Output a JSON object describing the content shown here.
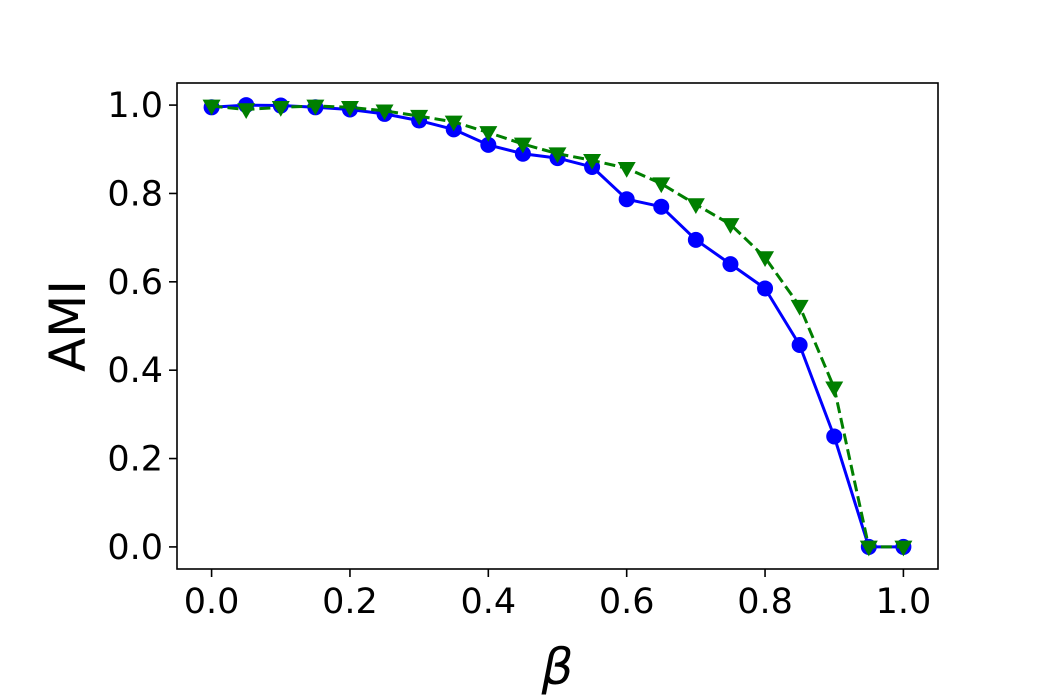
{
  "chart_data": {
    "type": "line",
    "title": "",
    "xlabel": "β",
    "ylabel": "AMI",
    "xlim": [
      -0.05,
      1.05
    ],
    "ylim": [
      -0.05,
      1.05
    ],
    "xticks": [
      0.0,
      0.2,
      0.4,
      0.6,
      0.8,
      1.0
    ],
    "yticks": [
      0.0,
      0.2,
      0.4,
      0.6,
      0.8,
      1.0
    ],
    "xtick_labels": [
      "0.0",
      "0.2",
      "0.4",
      "0.6",
      "0.8",
      "1.0"
    ],
    "ytick_labels": [
      "0.0",
      "0.2",
      "0.4",
      "0.6",
      "0.8",
      "1.0"
    ],
    "grid": false,
    "x": [
      0.0,
      0.05,
      0.1,
      0.15,
      0.2,
      0.25,
      0.3,
      0.35,
      0.4,
      0.45,
      0.5,
      0.55,
      0.6,
      0.65,
      0.7,
      0.75,
      0.8,
      0.85,
      0.9,
      0.95,
      1.0
    ],
    "series": [
      {
        "color": "#0000ff",
        "line_style": "solid",
        "marker": "circle",
        "values": [
          0.995,
          1.0,
          0.999,
          0.995,
          0.99,
          0.98,
          0.965,
          0.945,
          0.91,
          0.89,
          0.88,
          0.86,
          0.787,
          0.77,
          0.695,
          0.64,
          0.585,
          0.457,
          0.25,
          0.0,
          0.0
        ]
      },
      {
        "color": "#007f00",
        "line_style": "dashed",
        "marker": "triangle-down",
        "values": [
          0.998,
          0.99,
          0.995,
          0.998,
          0.995,
          0.987,
          0.975,
          0.962,
          0.938,
          0.912,
          0.89,
          0.875,
          0.857,
          0.822,
          0.775,
          0.73,
          0.655,
          0.545,
          0.36,
          0.0,
          0.0
        ]
      }
    ]
  }
}
